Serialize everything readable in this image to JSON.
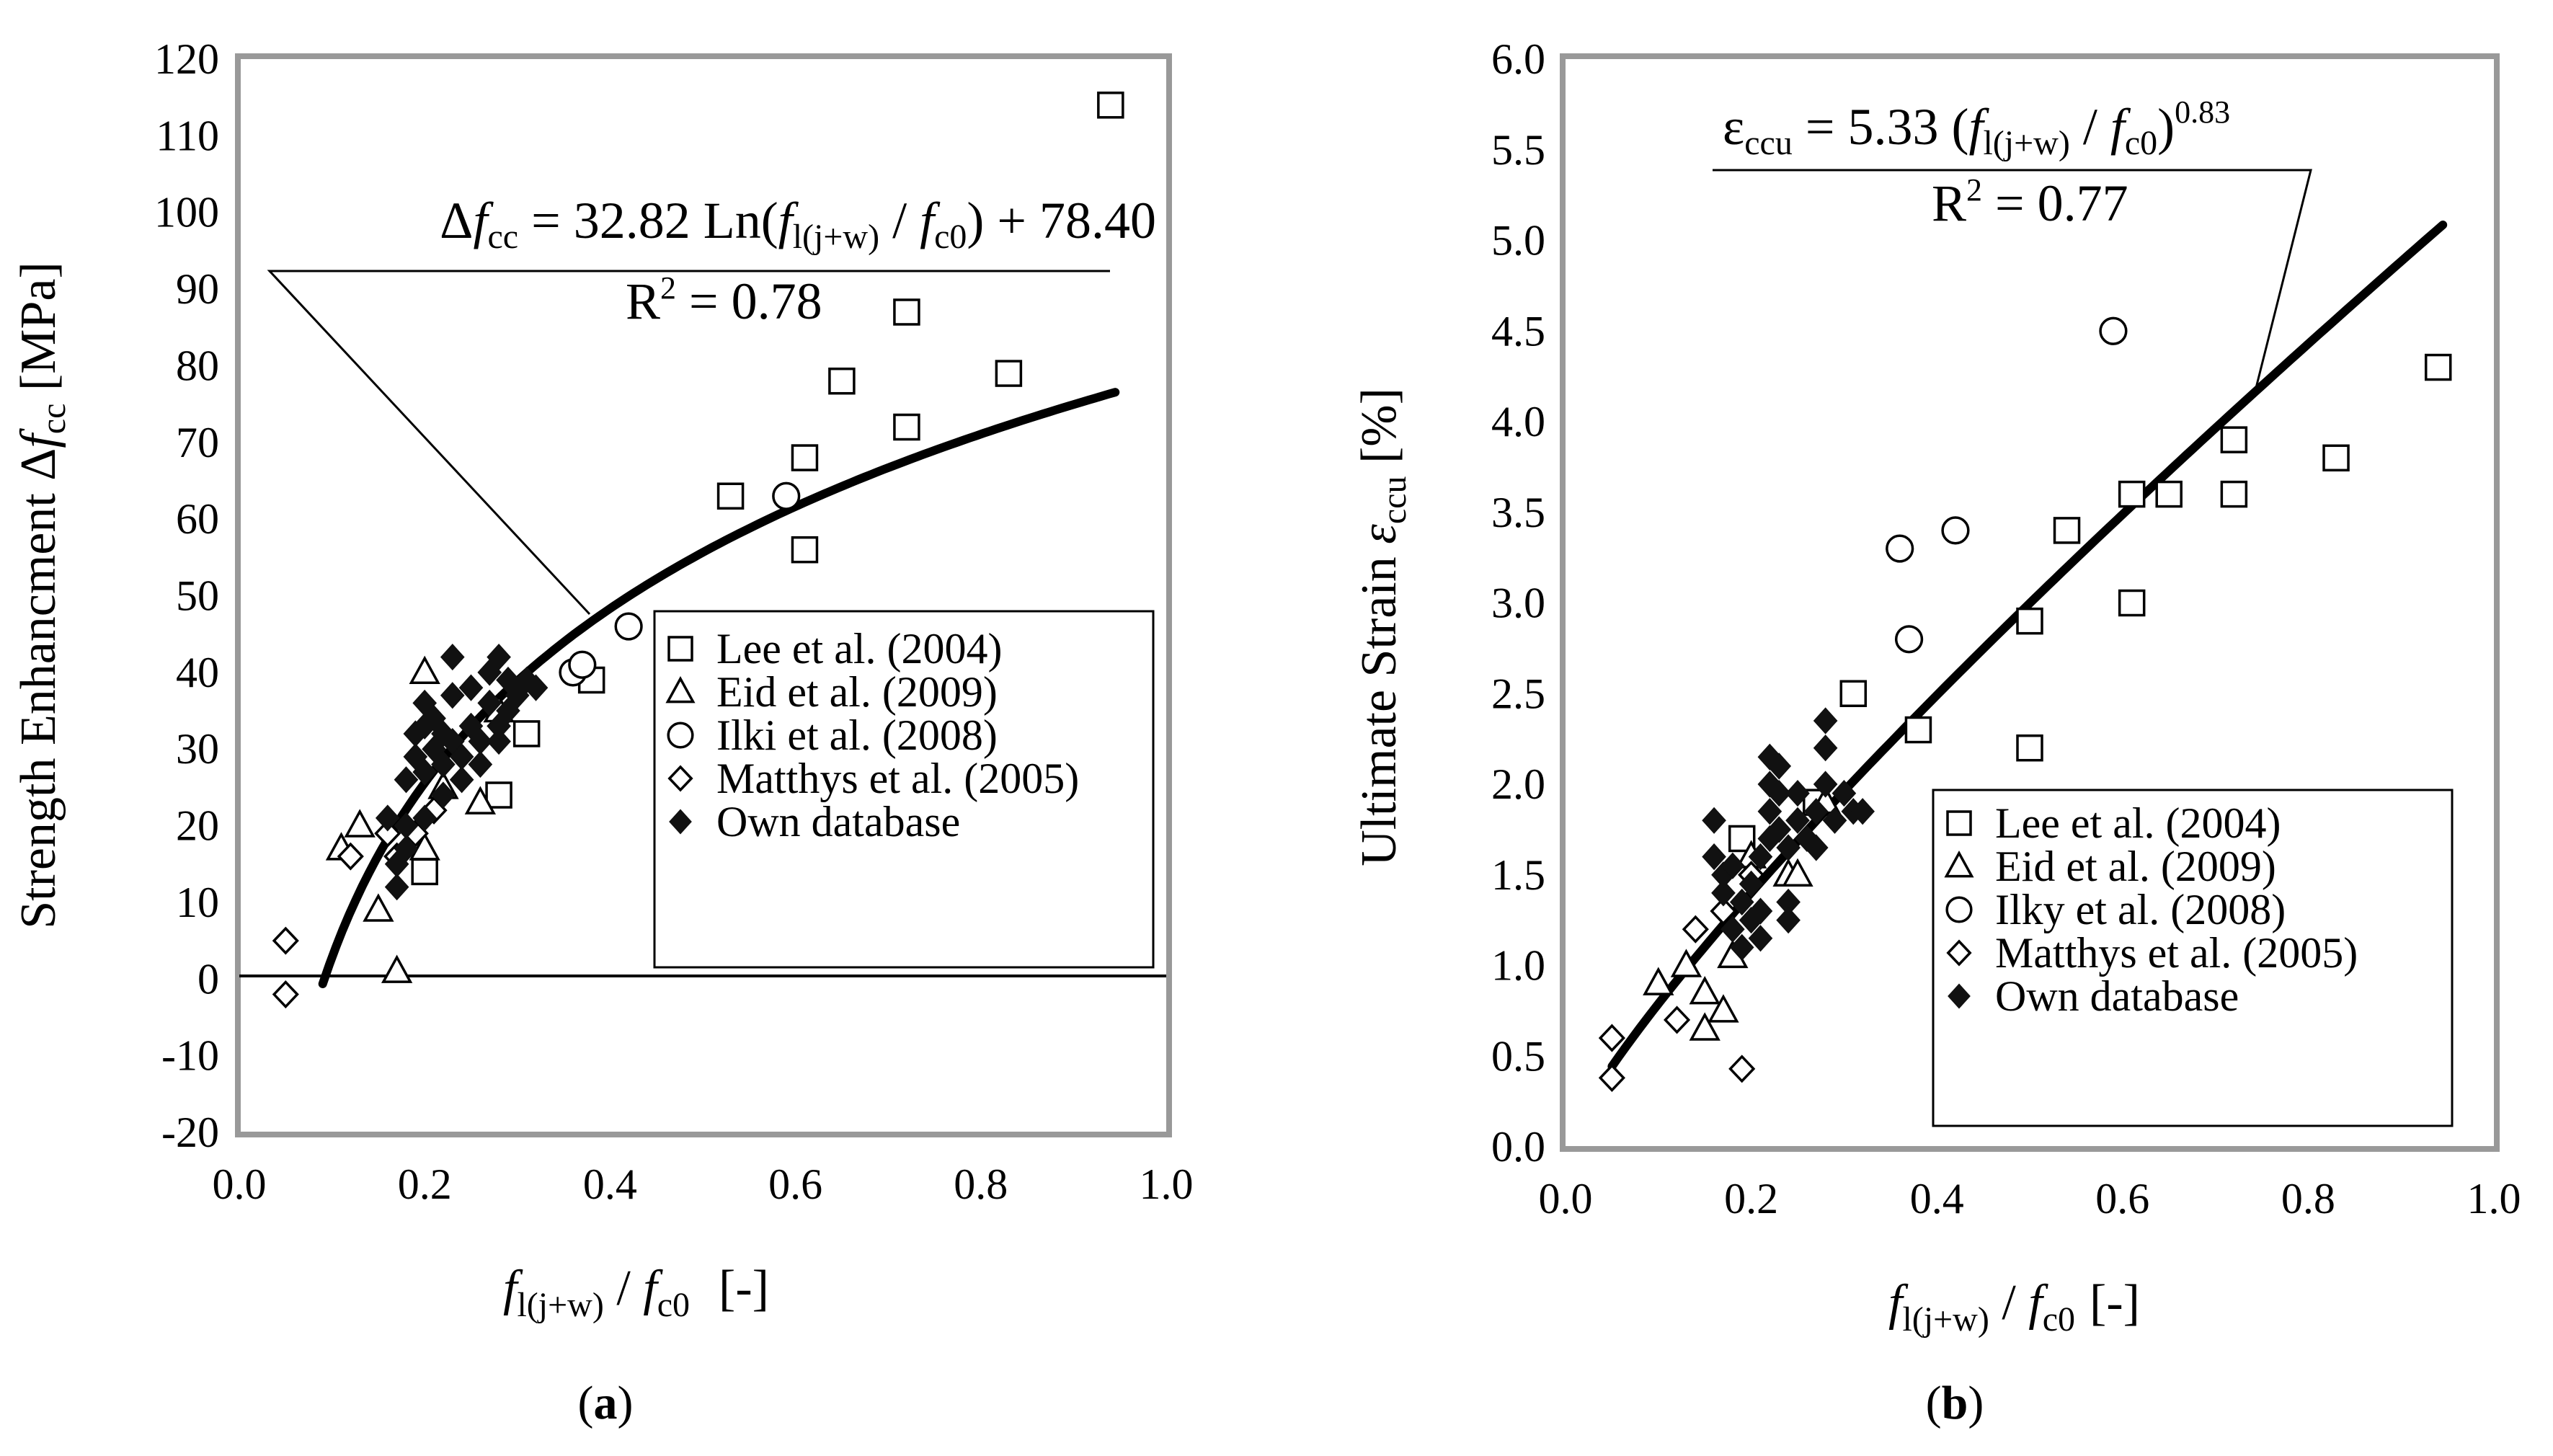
{
  "chart_data": [
    {
      "id": "a",
      "type": "scatter",
      "caption": {
        "open": "(",
        "label": "a",
        "close": ")"
      },
      "xlabel": {
        "f": "f",
        "f_sub": "l(j+w)",
        "slash": " / ",
        "f2": "f",
        "f2_sub": "c0",
        "unit": "[-]"
      },
      "ylabel": {
        "text": "Strength Enhancment Δ",
        "f": "f",
        "f_sub": "cc",
        "unit": " [MPa]"
      },
      "xlim": [
        0.0,
        1.0
      ],
      "ylim": [
        -20,
        120
      ],
      "xticks": [
        "0.0",
        "0.2",
        "0.4",
        "0.6",
        "0.8",
        "1.0"
      ],
      "yticks": [
        "-20",
        "-10",
        "0",
        "10",
        "20",
        "30",
        "40",
        "50",
        "60",
        "70",
        "80",
        "90",
        "100",
        "110",
        "120"
      ],
      "equation": {
        "delta": "Δ",
        "f": "f",
        "f_sub": "cc",
        "mid": " = 32.82 Ln(",
        "f2": "f",
        "f2_sub": "l(j+w)",
        "slash": " / ",
        "f3": "f",
        "f3_sub": "c0",
        "tail": ") + 78.40"
      },
      "r2": {
        "pre": "R",
        "sup": "2",
        "post": " = 0.78"
      },
      "fit": {
        "type": "log",
        "a": 32.82,
        "b": 78.4,
        "x_range": [
          0.09,
          0.945
        ]
      },
      "legend": [
        "Lee et al. (2004)",
        "Eid et al. (2009)",
        "Ilki et al. (2008)",
        "Matthys et al. (2005)",
        "Own database"
      ],
      "series": [
        {
          "name": "Lee et al. (2004)",
          "marker": "square",
          "points": [
            [
              0.2,
              14
            ],
            [
              0.28,
              24
            ],
            [
              0.31,
              32
            ],
            [
              0.38,
              39
            ],
            [
              0.53,
              63
            ],
            [
              0.61,
              68
            ],
            [
              0.61,
              56
            ],
            [
              0.65,
              78
            ],
            [
              0.72,
              87
            ],
            [
              0.72,
              72
            ],
            [
              0.83,
              79
            ],
            [
              0.94,
              114
            ]
          ]
        },
        {
          "name": "Eid et al. (2009)",
          "marker": "triangle",
          "points": [
            [
              0.13,
              20
            ],
            [
              0.11,
              17
            ],
            [
              0.15,
              9
            ],
            [
              0.17,
              1
            ],
            [
              0.2,
              17
            ],
            [
              0.26,
              23
            ],
            [
              0.28,
              35
            ],
            [
              0.2,
              40
            ],
            [
              0.22,
              25
            ]
          ]
        },
        {
          "name": "Ilki et al. (2008)",
          "marker": "circle",
          "points": [
            [
              0.36,
              40
            ],
            [
              0.37,
              41
            ],
            [
              0.42,
              46
            ],
            [
              0.59,
              63
            ]
          ]
        },
        {
          "name": "Matthys et al. (2005)",
          "marker": "diamond",
          "points": [
            [
              0.05,
              5
            ],
            [
              0.05,
              -2
            ],
            [
              0.12,
              16
            ],
            [
              0.17,
              16
            ],
            [
              0.19,
              19
            ],
            [
              0.16,
              19
            ],
            [
              0.21,
              22
            ]
          ]
        },
        {
          "name": "Own database",
          "marker": "filled-diamond",
          "points": [
            [
              0.16,
              21
            ],
            [
              0.17,
              12
            ],
            [
              0.17,
              15
            ],
            [
              0.18,
              17
            ],
            [
              0.18,
              20
            ],
            [
              0.18,
              26
            ],
            [
              0.19,
              29
            ],
            [
              0.19,
              32
            ],
            [
              0.2,
              27
            ],
            [
              0.2,
              33
            ],
            [
              0.2,
              36
            ],
            [
              0.21,
              30
            ],
            [
              0.21,
              34
            ],
            [
              0.22,
              24
            ],
            [
              0.22,
              28
            ],
            [
              0.23,
              31
            ],
            [
              0.23,
              37
            ],
            [
              0.23,
              42
            ],
            [
              0.24,
              26
            ],
            [
              0.24,
              29
            ],
            [
              0.25,
              33
            ],
            [
              0.25,
              38
            ],
            [
              0.26,
              31
            ],
            [
              0.27,
              36
            ],
            [
              0.27,
              40
            ],
            [
              0.28,
              31
            ],
            [
              0.28,
              33
            ],
            [
              0.28,
              42
            ],
            [
              0.29,
              35
            ],
            [
              0.29,
              39
            ],
            [
              0.3,
              37
            ],
            [
              0.31,
              39
            ],
            [
              0.32,
              38
            ],
            [
              0.2,
              21
            ],
            [
              0.22,
              32
            ],
            [
              0.26,
              28
            ]
          ]
        }
      ]
    },
    {
      "id": "b",
      "type": "scatter",
      "caption": {
        "open": "(",
        "label": "b",
        "close": ")"
      },
      "xlabel": {
        "f": "f",
        "f_sub": "l(j+w)",
        "slash": " / ",
        "f2": "f",
        "f2_sub": "c0",
        "unit": "[-]"
      },
      "ylabel": {
        "text": "Ultimate Strain ",
        "e": "ε",
        "e_sub": "ccu",
        "unit": " [%]"
      },
      "xlim": [
        0.0,
        1.0
      ],
      "ylim": [
        0.0,
        6.0
      ],
      "xticks": [
        "0.0",
        "0.2",
        "0.4",
        "0.6",
        "0.8",
        "1.0"
      ],
      "yticks": [
        "0.0",
        "0.5",
        "1.0",
        "1.5",
        "2.0",
        "2.5",
        "3.0",
        "3.5",
        "4.0",
        "4.5",
        "5.0",
        "5.5",
        "6.0"
      ],
      "equation": {
        "e": "ε",
        "e_sub": "ccu",
        "mid": " = 5.33 (",
        "f": "f",
        "f_sub": "l(j+w)",
        "slash": " / ",
        "f2": "f",
        "f2_sub": "c0",
        "close": ")",
        "exp": "0.83"
      },
      "r2": {
        "pre": "R",
        "sup": "2",
        "post": " = 0.77"
      },
      "fit": {
        "type": "power",
        "a": 5.33,
        "b": 0.83,
        "x_range": [
          0.05,
          0.945
        ]
      },
      "legend": [
        "Lee et al. (2004)",
        "Eid et al. (2009)",
        "Ilky et al. (2008)",
        "Matthys et al. (2005)",
        "Own database"
      ],
      "series": [
        {
          "name": "Lee et al. (2004)",
          "marker": "square",
          "points": [
            [
              0.19,
              1.7
            ],
            [
              0.27,
              1.9
            ],
            [
              0.31,
              2.5
            ],
            [
              0.38,
              2.3
            ],
            [
              0.5,
              2.2
            ],
            [
              0.5,
              2.9
            ],
            [
              0.54,
              3.4
            ],
            [
              0.61,
              3.0
            ],
            [
              0.61,
              3.6
            ],
            [
              0.65,
              3.6
            ],
            [
              0.72,
              3.9
            ],
            [
              0.72,
              3.6
            ],
            [
              0.83,
              3.8
            ],
            [
              0.94,
              4.3
            ]
          ]
        },
        {
          "name": "Eid et al. (2009)",
          "marker": "triangle",
          "points": [
            [
              0.1,
              0.9
            ],
            [
              0.13,
              1.0
            ],
            [
              0.15,
              0.65
            ],
            [
              0.15,
              0.85
            ],
            [
              0.17,
              0.75
            ],
            [
              0.18,
              1.05
            ],
            [
              0.2,
              1.6
            ],
            [
              0.24,
              1.5
            ],
            [
              0.25,
              1.5
            ],
            [
              0.28,
              1.9
            ]
          ]
        },
        {
          "name": "Ilky et al. (2008)",
          "marker": "circle",
          "points": [
            [
              0.36,
              3.3
            ],
            [
              0.37,
              2.8
            ],
            [
              0.42,
              3.4
            ],
            [
              0.59,
              4.5
            ]
          ]
        },
        {
          "name": "Matthys et al. (2005)",
          "marker": "diamond",
          "points": [
            [
              0.05,
              0.6
            ],
            [
              0.05,
              0.38
            ],
            [
              0.12,
              0.7
            ],
            [
              0.19,
              0.43
            ],
            [
              0.14,
              1.2
            ],
            [
              0.17,
              1.3
            ],
            [
              0.2,
              1.5
            ]
          ]
        },
        {
          "name": "Own database",
          "marker": "filled-diamond",
          "points": [
            [
              0.16,
              1.8
            ],
            [
              0.16,
              1.6
            ],
            [
              0.17,
              1.4
            ],
            [
              0.17,
              1.5
            ],
            [
              0.18,
              1.2
            ],
            [
              0.18,
              1.55
            ],
            [
              0.19,
              1.1
            ],
            [
              0.19,
              1.35
            ],
            [
              0.2,
              1.45
            ],
            [
              0.2,
              1.25
            ],
            [
              0.21,
              1.15
            ],
            [
              0.21,
              1.3
            ],
            [
              0.21,
              1.6
            ],
            [
              0.22,
              1.7
            ],
            [
              0.22,
              1.85
            ],
            [
              0.22,
              2.0
            ],
            [
              0.22,
              2.15
            ],
            [
              0.23,
              1.75
            ],
            [
              0.23,
              1.95
            ],
            [
              0.23,
              2.1
            ],
            [
              0.24,
              1.35
            ],
            [
              0.24,
              1.65
            ],
            [
              0.24,
              1.25
            ],
            [
              0.25,
              1.8
            ],
            [
              0.25,
              1.95
            ],
            [
              0.26,
              1.7
            ],
            [
              0.27,
              1.85
            ],
            [
              0.27,
              1.65
            ],
            [
              0.28,
              2.0
            ],
            [
              0.28,
              2.2
            ],
            [
              0.28,
              2.35
            ],
            [
              0.29,
              1.8
            ],
            [
              0.3,
              1.95
            ],
            [
              0.31,
              1.85
            ],
            [
              0.32,
              1.85
            ]
          ]
        }
      ]
    }
  ]
}
